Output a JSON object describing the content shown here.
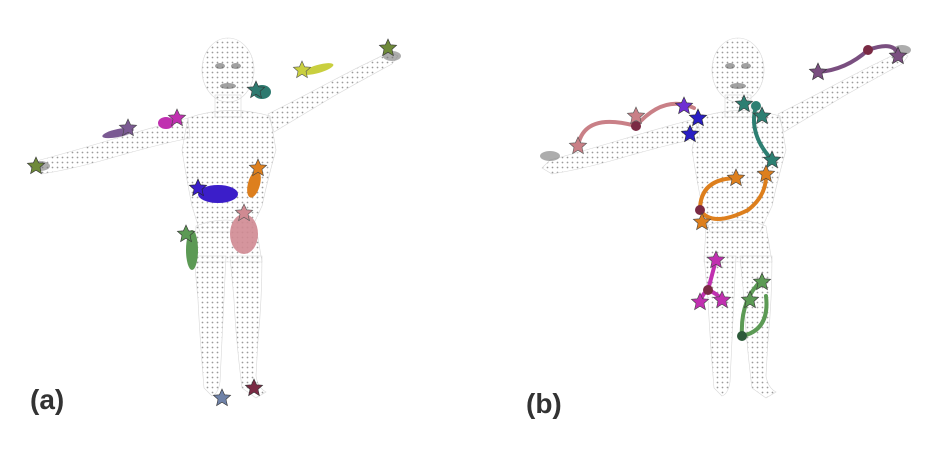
{
  "figure": {
    "panel_a_label": "(a)",
    "panel_b_label": "(b)"
  },
  "colors": {
    "body_dots": "#9a9a9a",
    "purple": "#7b5a93",
    "yellow": "#c9cf3f",
    "olive": "#6f8a3a",
    "magenta": "#c030b0",
    "teal": "#2e7a70",
    "indigo": "#3b1ec9",
    "orange": "#dd7f1d",
    "pink": "#d08a92",
    "green": "#5c9a55",
    "slate_blue": "#6f82a8",
    "maroon": "#7a2a44",
    "rose": "#c98087",
    "violet": "#6f2fd3",
    "dark_violet": "#8c4bc8",
    "mauve": "#7a4f80",
    "sea_green": "#2d7f72",
    "dark_blue": "#2a1fc4",
    "dark_green": "#4f8a4e"
  },
  "icons": {
    "keypoint": "star-icon",
    "anchor": "dot-icon"
  }
}
